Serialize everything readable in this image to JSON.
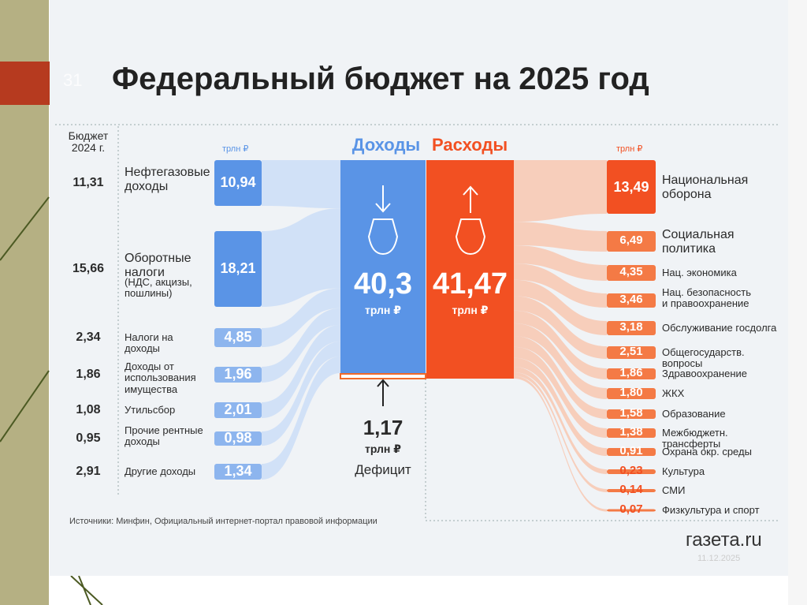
{
  "slide_number": "31",
  "date": "11.12.2025",
  "title": "Федеральный бюджет на 2025 год",
  "budget_2024_header": "Бюджет 2024 г.",
  "unit": "трлн ₽",
  "income": {
    "title": "Доходы",
    "total": "40,3",
    "items": [
      {
        "label": "Нефтегазовые доходы",
        "value": "10,94",
        "prev": "11,31"
      },
      {
        "label": "Оборотные налоги",
        "note": "(НДС, акцизы, пошлины)",
        "value": "18,21",
        "prev": "15,66"
      },
      {
        "label": "Налоги на доходы",
        "value": "4,85",
        "prev": "2,34"
      },
      {
        "label": "Доходы от использования имущества",
        "value": "1,96",
        "prev": "1,86"
      },
      {
        "label": "Утильсбор",
        "value": "2,01",
        "prev": "1,08"
      },
      {
        "label": "Прочие рентные доходы",
        "value": "0,98",
        "prev": "0,95"
      },
      {
        "label": "Другие доходы",
        "value": "1,34",
        "prev": "2,91"
      }
    ]
  },
  "expenses": {
    "title": "Расходы",
    "total": "41,47",
    "items": [
      {
        "label": "Национальная оборона",
        "value": "13,49"
      },
      {
        "label": "Социальная политика",
        "value": "6,49"
      },
      {
        "label": "Нац. экономика",
        "value": "4,35"
      },
      {
        "label": "Нац. безопасность и правоохранение",
        "value": "3,46"
      },
      {
        "label": "Обслуживание госдолга",
        "value": "3,18"
      },
      {
        "label": "Общегосударств. вопросы",
        "value": "2,51"
      },
      {
        "label": "Здравоохранение",
        "value": "1,86"
      },
      {
        "label": "ЖКХ",
        "value": "1,80"
      },
      {
        "label": "Образование",
        "value": "1,58"
      },
      {
        "label": "Межбюджетн. трансферты",
        "value": "1,38"
      },
      {
        "label": "Охрана окр. среды",
        "value": "0,91"
      },
      {
        "label": "Культура",
        "value": "0,23"
      },
      {
        "label": "СМИ",
        "value": "0,14"
      },
      {
        "label": "Физкультура и спорт",
        "value": "0,07"
      }
    ]
  },
  "deficit": {
    "value": "1,17",
    "label": "Дефицит"
  },
  "source": "Источники: Минфин, Официальный интернет-портал правовой информации",
  "logo": "газета.ru"
}
